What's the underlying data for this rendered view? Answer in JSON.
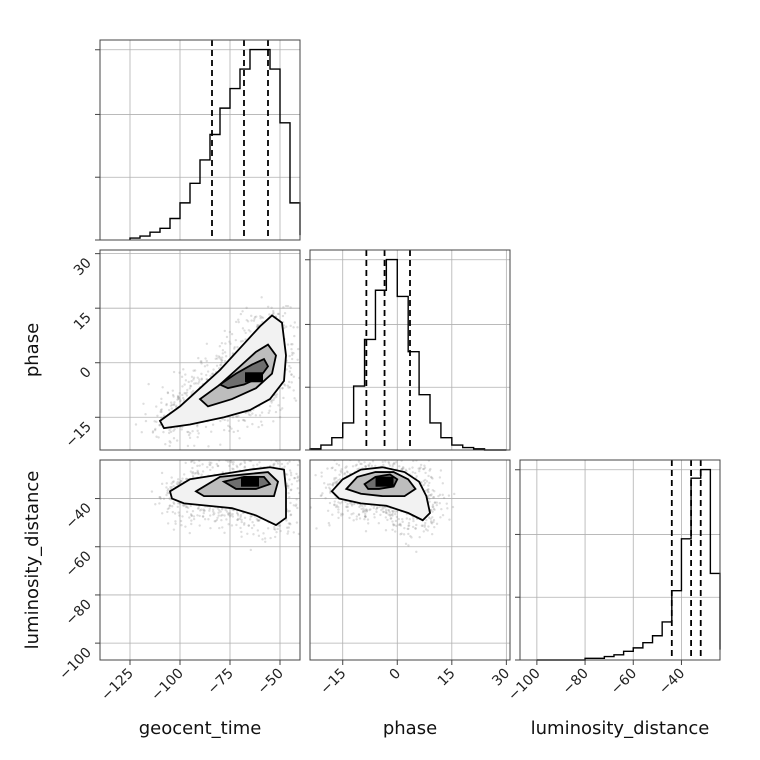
{
  "chart_data": {
    "type": "corner",
    "parameters": [
      "geocent_time",
      "phase",
      "luminosity_distance"
    ],
    "axis_labels": {
      "x": [
        "geocent_time",
        "phase",
        "luminosity_distance"
      ],
      "y": [
        "phase",
        "luminosity_distance"
      ]
    },
    "ranges": {
      "geocent_time": [
        -140,
        -40
      ],
      "phase": [
        -24,
        31
      ],
      "luminosity_distance": [
        -107,
        -24
      ]
    },
    "ticks": {
      "geocent_time": [
        -125,
        -100,
        -75,
        -50
      ],
      "phase": [
        -15,
        0,
        15,
        30
      ],
      "luminosity_distance": [
        -100,
        -80,
        -60,
        -40
      ]
    },
    "tick_labels": {
      "geocent_time": [
        "−125",
        "−100",
        "−75",
        "−50"
      ],
      "phase": [
        "−15",
        "0",
        "15",
        "30"
      ],
      "luminosity_distance": [
        "−100",
        "−80",
        "−60",
        "−40"
      ]
    },
    "quantiles": {
      "geocent_time": [
        -84,
        -68,
        -56
      ],
      "phase": [
        -8.5,
        -3.5,
        3.5
      ],
      "luminosity_distance": [
        -44,
        -36,
        -32
      ]
    },
    "histograms": {
      "geocent_time": {
        "edges": [
          -125,
          -120,
          -115,
          -110,
          -105,
          -100,
          -95,
          -90,
          -85,
          -80,
          -75,
          -70,
          -65,
          -60,
          -55,
          -50,
          -45,
          -40
        ],
        "counts": [
          2,
          4,
          8,
          12,
          22,
          38,
          58,
          82,
          108,
          135,
          155,
          175,
          195,
          195,
          175,
          120,
          38,
          5
        ]
      },
      "phase": {
        "edges": [
          -24,
          -21,
          -18,
          -15,
          -12,
          -9,
          -6,
          -3,
          0,
          3,
          6,
          9,
          12,
          15,
          18,
          21,
          24,
          27,
          30
        ],
        "counts": [
          1,
          4,
          10,
          22,
          52,
          90,
          130,
          155,
          125,
          80,
          45,
          22,
          10,
          4,
          2,
          1,
          0,
          0
        ]
      },
      "luminosity_distance": {
        "edges": [
          -100,
          -96,
          -92,
          -88,
          -84,
          -80,
          -76,
          -72,
          -68,
          -64,
          -60,
          -56,
          -52,
          -48,
          -44,
          -40,
          -36,
          -32,
          -28,
          -24
        ],
        "counts": [
          0,
          0,
          0,
          0,
          0,
          1,
          1,
          2,
          3,
          5,
          7,
          10,
          14,
          22,
          40,
          70,
          105,
          110,
          50,
          6
        ]
      }
    },
    "pairs": [
      {
        "x": "geocent_time",
        "y": "phase",
        "contours": [
          [
            [
              -110,
              -16
            ],
            [
              -100,
              -12
            ],
            [
              -90,
              -7
            ],
            [
              -80,
              -2
            ],
            [
              -70,
              4
            ],
            [
              -60,
              10
            ],
            [
              -54,
              13
            ],
            [
              -49,
              11
            ],
            [
              -47,
              2
            ],
            [
              -48,
              -5
            ],
            [
              -55,
              -10
            ],
            [
              -65,
              -13
            ],
            [
              -78,
              -15
            ],
            [
              -95,
              -17
            ],
            [
              -108,
              -18
            ]
          ],
          [
            [
              -90,
              -10
            ],
            [
              -80,
              -6
            ],
            [
              -70,
              -1
            ],
            [
              -62,
              3
            ],
            [
              -56,
              5
            ],
            [
              -52,
              2
            ],
            [
              -54,
              -3
            ],
            [
              -62,
              -7
            ],
            [
              -74,
              -10
            ],
            [
              -86,
              -12
            ]
          ],
          [
            [
              -80,
              -6
            ],
            [
              -72,
              -3
            ],
            [
              -64,
              -0.5
            ],
            [
              -58,
              1
            ],
            [
              -56,
              -1
            ],
            [
              -60,
              -4
            ],
            [
              -68,
              -6
            ],
            [
              -76,
              -7
            ]
          ]
        ],
        "density_peak": [
          -63,
          -4
        ]
      },
      {
        "x": "geocent_time",
        "y": "luminosity_distance",
        "contours": [
          [
            [
              -105,
              -37
            ],
            [
              -95,
              -32
            ],
            [
              -80,
              -30
            ],
            [
              -65,
              -28
            ],
            [
              -55,
              -27
            ],
            [
              -48,
              -28
            ],
            [
              -47,
              -36
            ],
            [
              -47,
              -48
            ],
            [
              -52,
              -51
            ],
            [
              -62,
              -47
            ],
            [
              -74,
              -44
            ],
            [
              -86,
              -43
            ],
            [
              -98,
              -42
            ],
            [
              -104,
              -40
            ]
          ],
          [
            [
              -92,
              -37
            ],
            [
              -80,
              -31
            ],
            [
              -68,
              -30
            ],
            [
              -56,
              -29
            ],
            [
              -51,
              -33
            ],
            [
              -53,
              -39
            ],
            [
              -64,
              -39
            ],
            [
              -76,
              -39
            ],
            [
              -88,
              -39
            ]
          ],
          [
            [
              -78,
              -33
            ],
            [
              -68,
              -31
            ],
            [
              -58,
              -31
            ],
            [
              -55,
              -34
            ],
            [
              -62,
              -36
            ],
            [
              -72,
              -36
            ]
          ]
        ],
        "density_peak": [
          -65,
          -33
        ]
      },
      {
        "x": "phase",
        "y": "luminosity_distance",
        "contours": [
          [
            [
              -18,
              -37
            ],
            [
              -15,
              -32
            ],
            [
              -10,
              -28
            ],
            [
              -4,
              -27
            ],
            [
              2,
              -29
            ],
            [
              6,
              -33
            ],
            [
              8,
              -39
            ],
            [
              9,
              -46
            ],
            [
              7,
              -49
            ],
            [
              3,
              -46
            ],
            [
              -3,
              -43
            ],
            [
              -10,
              -42
            ],
            [
              -16,
              -40
            ]
          ],
          [
            [
              -14,
              -36
            ],
            [
              -11,
              -31
            ],
            [
              -6,
              -29
            ],
            [
              -1,
              -29
            ],
            [
              3,
              -32
            ],
            [
              5,
              -36
            ],
            [
              2,
              -39
            ],
            [
              -4,
              -39
            ],
            [
              -10,
              -38
            ]
          ],
          [
            [
              -9,
              -34
            ],
            [
              -6,
              -31
            ],
            [
              -2,
              -30
            ],
            [
              0,
              -32
            ],
            [
              -1,
              -35
            ],
            [
              -5,
              -36
            ],
            [
              -8,
              -36
            ]
          ]
        ],
        "density_peak": [
          -3.5,
          -33
        ]
      }
    ],
    "grid": true,
    "colors": {
      "hist": "#000000",
      "scatter": "#8a8a8a",
      "contour": "#000000",
      "grid": "#b0b0b0"
    }
  }
}
